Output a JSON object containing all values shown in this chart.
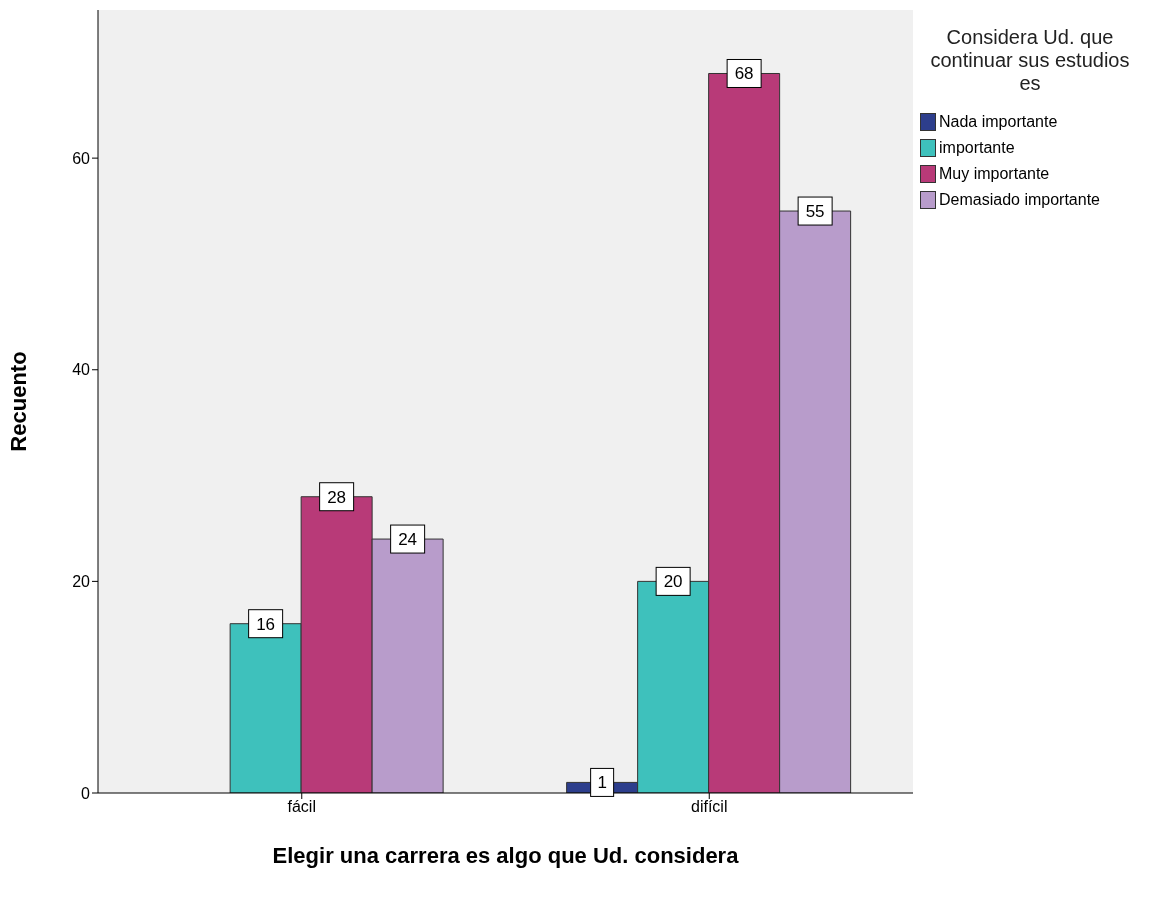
{
  "chart_data": {
    "type": "bar",
    "xlabel": "Elegir una carrera es algo que Ud. considera",
    "ylabel": "Recuento",
    "legend_title": "Considera Ud. que continuar sus estudios es",
    "categories": [
      "fácil",
      "difícil"
    ],
    "series": [
      {
        "name": "Nada importante",
        "color": "#2d3e8c",
        "values": [
          null,
          1
        ]
      },
      {
        "name": "importante",
        "color": "#3ec1bc",
        "values": [
          16,
          20
        ]
      },
      {
        "name": "Muy importante",
        "color": "#b83a78",
        "values": [
          28,
          68
        ]
      },
      {
        "name": "Demasiado importante",
        "color": "#b89ccb",
        "values": [
          24,
          55
        ]
      }
    ],
    "ylim": [
      0,
      74
    ],
    "yticks": [
      0,
      20,
      40,
      60
    ],
    "data_labels": true,
    "legend": "top right",
    "grid": false
  }
}
